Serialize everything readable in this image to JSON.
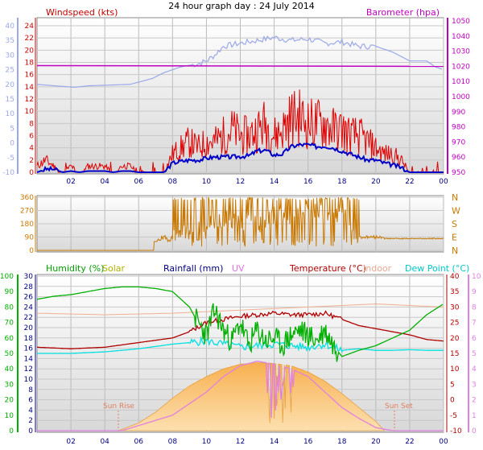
{
  "page_title": "24 hour graph day : 24 July 2014",
  "colors": {
    "wind": "#e00000",
    "gust_dark": "#0000c8",
    "baro": "#c000c0",
    "gust_light": "#9aa8e8",
    "wdir": "#c87800",
    "humidity": "#00b000",
    "solar": "#b8b800",
    "rain": "#000080",
    "uv": "#e080e0",
    "temp": "#b00000",
    "indoor": "#f0b090",
    "dew": "#00e0e0",
    "solar_fill": "#f8b860"
  },
  "chart_data": [
    {
      "type": "line",
      "title": "",
      "legend_left": "Windspeed (kts)",
      "legend_right": "Barometer (hpa)",
      "x_ticks": [
        "02",
        "04",
        "06",
        "08",
        "10",
        "12",
        "14",
        "16",
        "18",
        "20",
        "22",
        "00"
      ],
      "y_left_inner": {
        "ticks": [
          "24",
          "22",
          "20",
          "18",
          "16",
          "14",
          "12",
          "10",
          "8",
          "6",
          "4",
          "2",
          "0"
        ],
        "range": [
          0,
          24
        ]
      },
      "y_left_outer": {
        "ticks": [
          "40",
          "35",
          "30",
          "25",
          "20",
          "15",
          "10",
          "5",
          "0",
          "-5",
          "-10"
        ],
        "range": [
          -10,
          40
        ]
      },
      "y_right": {
        "ticks": [
          "1050",
          "1040",
          "1030",
          "1020",
          "1010",
          "1000",
          "990",
          "980",
          "970",
          "960",
          "950"
        ],
        "range": [
          950,
          1050
        ]
      },
      "series": [
        {
          "name": "Windspeed",
          "axis": "left_inner",
          "x": [
            0,
            0.5,
            1,
            1.5,
            2,
            2.5,
            3,
            3.5,
            4,
            4.5,
            5,
            5.5,
            6,
            6.5,
            7,
            7.5,
            8,
            8.5,
            9,
            9.5,
            10,
            10.5,
            11,
            11.5,
            12,
            12.5,
            13,
            13.5,
            14,
            14.5,
            15,
            15.5,
            16,
            16.5,
            17,
            17.5,
            18,
            18.5,
            19,
            19.5,
            20,
            20.5,
            21,
            21.5,
            22,
            22.5,
            23,
            23.5,
            24
          ],
          "values": [
            1,
            2,
            1,
            0,
            1,
            0,
            1,
            1,
            1,
            0,
            1,
            1,
            0,
            0,
            0,
            0,
            3,
            4,
            5,
            4,
            5,
            5,
            6,
            7,
            6,
            6,
            7,
            8,
            6,
            7,
            9,
            9,
            8,
            8,
            8,
            7,
            7,
            6,
            6,
            5,
            4,
            3,
            3,
            2,
            0,
            0,
            0,
            0,
            0
          ]
        },
        {
          "name": "Wind (avg)",
          "axis": "left_inner",
          "x": [
            0,
            0.5,
            1,
            1.5,
            2,
            2.5,
            3,
            3.5,
            4,
            4.5,
            5,
            5.5,
            6,
            6.5,
            7,
            7.5,
            8,
            8.5,
            9,
            9.5,
            10,
            10.5,
            11,
            11.5,
            12,
            12.5,
            13,
            13.5,
            14,
            14.5,
            15,
            15.5,
            16,
            16.5,
            17,
            17.5,
            18,
            18.5,
            19,
            19.5,
            20,
            20.5,
            21,
            21.5,
            22,
            22.5,
            23,
            23.5,
            24
          ],
          "values": [
            0,
            0.5,
            0.5,
            0,
            0.2,
            0,
            0.2,
            0.2,
            0.2,
            0,
            0.2,
            0.2,
            0,
            0,
            0,
            0,
            1.5,
            1.8,
            2,
            2,
            2.3,
            2.5,
            2.5,
            2.5,
            2.6,
            2.7,
            3.5,
            3.6,
            2.8,
            3,
            4.2,
            4.5,
            4.5,
            4.2,
            4.3,
            4,
            3.5,
            3,
            2.5,
            2,
            2,
            1.5,
            1.2,
            0.8,
            0,
            0,
            0,
            0,
            0
          ]
        },
        {
          "name": "Barometer",
          "axis": "right",
          "x": [
            0,
            24
          ],
          "values": [
            1020.5,
            1020
          ]
        },
        {
          "name": "Wind (light)",
          "axis": "left_outer",
          "x": [
            0,
            2.2,
            3,
            5.5,
            6.8,
            7.5,
            8.5,
            9.5,
            10,
            10.5,
            11,
            12,
            13,
            14,
            15,
            16,
            17,
            18,
            19,
            20,
            21,
            22,
            23,
            23.5,
            24
          ],
          "values": [
            20,
            19,
            19.5,
            20,
            22,
            24,
            26,
            27,
            28,
            30,
            33,
            34,
            35,
            36,
            35,
            35.5,
            34,
            34.5,
            33,
            33,
            31,
            28,
            28,
            26,
            25
          ]
        }
      ]
    },
    {
      "type": "line",
      "title": "",
      "x_ticks": [],
      "y_left": {
        "ticks": [
          "360",
          "270",
          "180",
          "90",
          "0"
        ],
        "range": [
          0,
          360
        ]
      },
      "y_right_labels": [
        "N",
        "W",
        "S",
        "E",
        "N"
      ],
      "series": [
        {
          "name": "Wind Direction",
          "x": [
            0,
            1,
            2,
            3,
            4,
            5,
            6,
            6.9,
            7,
            8,
            9,
            10,
            11,
            12,
            13,
            14,
            15,
            16,
            17,
            18,
            19,
            20,
            21,
            22,
            23,
            24
          ],
          "values": [
            0,
            0,
            0,
            0,
            0,
            0,
            0,
            0,
            80,
            90,
            130,
            190,
            220,
            200,
            170,
            240,
            230,
            260,
            250,
            250,
            90,
            100,
            95,
            80,
            80,
            80
          ]
        }
      ]
    },
    {
      "type": "line",
      "title": "",
      "legend": [
        "Humidity  (%)",
        "Solar",
        "Rainfall (mm)",
        "UV",
        "Temperature (°C)",
        "Indoor",
        "Dew Point (°C)"
      ],
      "x_ticks": [
        "02",
        "04",
        "06",
        "08",
        "10",
        "12",
        "14",
        "16",
        "18",
        "20",
        "22",
        "00"
      ],
      "annotations": [
        "Sun Rise",
        "Sun Set"
      ],
      "y_humidity": {
        "ticks": [
          "100",
          "90",
          "80",
          "70",
          "60",
          "50",
          "40",
          "30",
          "20",
          "10",
          "0"
        ],
        "range": [
          0,
          100
        ]
      },
      "y_rain": {
        "ticks": [
          "30",
          "28",
          "26",
          "24",
          "22",
          "20",
          "18",
          "16",
          "14",
          "12",
          "10",
          "8",
          "6",
          "4",
          "2",
          "0"
        ],
        "range": [
          0,
          30
        ]
      },
      "y_temp": {
        "ticks": [
          "40",
          "35",
          "30",
          "25",
          "20",
          "15",
          "10",
          "5",
          "0",
          "-5",
          "-10"
        ],
        "range": [
          -10,
          40
        ]
      },
      "y_uv": {
        "ticks": [
          "10",
          "9",
          "8",
          "7",
          "6",
          "5",
          "4",
          "3",
          "2",
          "1",
          "0"
        ],
        "range": [
          0,
          10
        ]
      },
      "series": [
        {
          "name": "Humidity",
          "axis": "humidity",
          "x": [
            0,
            1,
            2,
            3,
            4,
            5,
            6,
            7,
            8,
            9,
            9.5,
            10,
            10.5,
            11,
            11.5,
            12,
            12.5,
            13,
            13.5,
            14,
            14.5,
            15,
            15.5,
            16,
            16.5,
            17,
            17.5,
            18,
            19,
            20,
            21,
            22,
            23,
            24
          ],
          "values": [
            85,
            87,
            88,
            90,
            92,
            93,
            93,
            92,
            90,
            80,
            70,
            62,
            78,
            65,
            58,
            70,
            55,
            65,
            58,
            60,
            55,
            62,
            65,
            62,
            58,
            65,
            55,
            48,
            52,
            55,
            60,
            65,
            75,
            82
          ]
        },
        {
          "name": "Temperature",
          "axis": "temp",
          "x": [
            0,
            2,
            4,
            6,
            8,
            9,
            10,
            11,
            12,
            13,
            14,
            15,
            16,
            17,
            18,
            19,
            20,
            21,
            22,
            23,
            24
          ],
          "values": [
            17,
            16.5,
            17,
            18.5,
            20,
            22,
            25,
            26,
            27,
            27.5,
            28,
            27.5,
            27.5,
            28,
            26,
            24,
            23,
            22,
            21,
            19.5,
            19
          ]
        },
        {
          "name": "Indoor",
          "axis": "temp",
          "x": [
            0,
            4,
            8,
            12,
            16,
            20,
            24
          ],
          "values": [
            28,
            27.5,
            28,
            29,
            30,
            31,
            30
          ]
        },
        {
          "name": "Dew Point",
          "axis": "temp",
          "x": [
            0,
            2,
            4,
            6,
            8,
            9,
            10,
            11,
            12,
            13,
            14,
            15,
            16,
            17,
            18,
            19,
            20,
            21,
            22,
            23,
            24
          ],
          "values": [
            15,
            15,
            15.5,
            16.5,
            18,
            18.5,
            19,
            18,
            17,
            17.5,
            18,
            17.5,
            17,
            18,
            16,
            16.5,
            16,
            16,
            16.2,
            16,
            16
          ]
        },
        {
          "name": "Solar",
          "axis": "humidity",
          "x": [
            4.8,
            6,
            7,
            8,
            9,
            10,
            11,
            12,
            13,
            14,
            15,
            16,
            17,
            18,
            19,
            20,
            20.5
          ],
          "values": [
            0,
            5,
            12,
            21,
            29,
            35,
            40,
            43,
            44,
            43.5,
            42,
            38,
            32,
            24,
            15,
            6,
            0
          ]
        },
        {
          "name": "UV",
          "axis": "uv",
          "x": [
            5,
            8,
            10,
            11,
            12,
            13,
            14,
            15,
            16,
            17,
            18,
            19,
            20,
            21,
            24
          ],
          "values": [
            0,
            1,
            2.5,
            3.5,
            4.2,
            4.5,
            4.3,
            4,
            3.5,
            2.5,
            1.5,
            0.8,
            0.2,
            0,
            0
          ]
        }
      ]
    }
  ]
}
